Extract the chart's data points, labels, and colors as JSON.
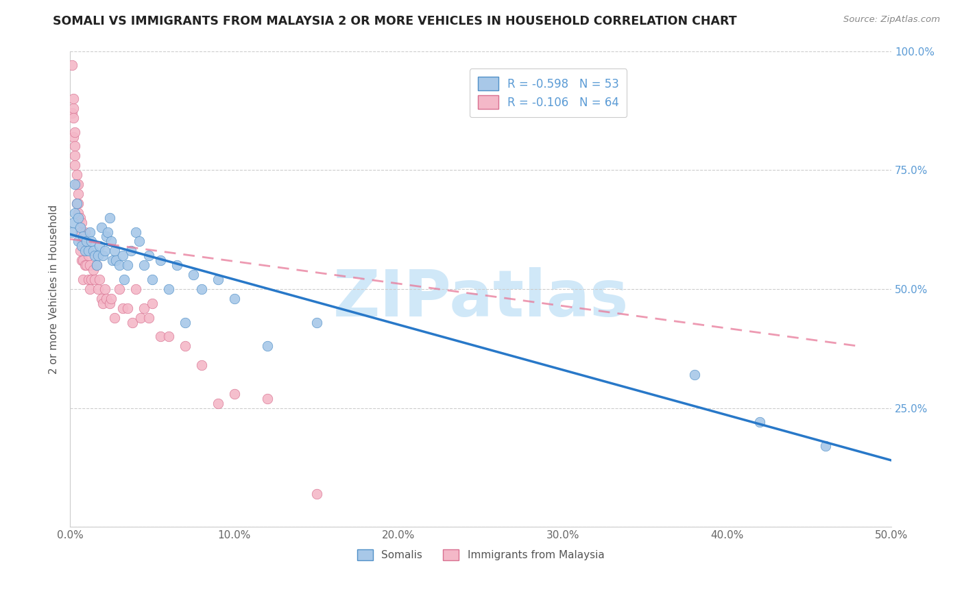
{
  "title": "SOMALI VS IMMIGRANTS FROM MALAYSIA 2 OR MORE VEHICLES IN HOUSEHOLD CORRELATION CHART",
  "source": "Source: ZipAtlas.com",
  "ylabel": "2 or more Vehicles in Household",
  "xmin": 0.0,
  "xmax": 0.5,
  "ymin": 0.0,
  "ymax": 1.0,
  "xticks": [
    0.0,
    0.1,
    0.2,
    0.3,
    0.4,
    0.5
  ],
  "xtick_labels": [
    "0.0%",
    "10.0%",
    "20.0%",
    "30.0%",
    "40.0%",
    "50.0%"
  ],
  "yticks": [
    0.0,
    0.25,
    0.5,
    0.75,
    1.0
  ],
  "ytick_labels_right": [
    "",
    "25.0%",
    "50.0%",
    "75.0%",
    "100.0%"
  ],
  "legend_label1": "Somalis",
  "legend_label2": "Immigrants from Malaysia",
  "R1": -0.598,
  "N1": 53,
  "R2": -0.106,
  "N2": 64,
  "color_blue": "#a8c8e8",
  "color_pink": "#f4b8c8",
  "color_blue_line": "#2878c8",
  "color_pink_line": "#e87898",
  "watermark": "ZIPatlas",
  "watermark_color": "#d0e8f8",
  "somali_x": [
    0.001,
    0.002,
    0.003,
    0.003,
    0.004,
    0.005,
    0.005,
    0.006,
    0.007,
    0.008,
    0.009,
    0.01,
    0.011,
    0.012,
    0.013,
    0.014,
    0.015,
    0.016,
    0.017,
    0.018,
    0.019,
    0.02,
    0.021,
    0.022,
    0.023,
    0.024,
    0.025,
    0.026,
    0.027,
    0.028,
    0.03,
    0.032,
    0.033,
    0.035,
    0.037,
    0.04,
    0.042,
    0.045,
    0.048,
    0.05,
    0.055,
    0.06,
    0.065,
    0.07,
    0.075,
    0.08,
    0.09,
    0.1,
    0.12,
    0.15,
    0.38,
    0.42,
    0.46
  ],
  "somali_y": [
    0.62,
    0.64,
    0.66,
    0.72,
    0.68,
    0.6,
    0.65,
    0.63,
    0.59,
    0.61,
    0.58,
    0.6,
    0.58,
    0.62,
    0.6,
    0.58,
    0.57,
    0.55,
    0.57,
    0.59,
    0.63,
    0.57,
    0.58,
    0.61,
    0.62,
    0.65,
    0.6,
    0.56,
    0.58,
    0.56,
    0.55,
    0.57,
    0.52,
    0.55,
    0.58,
    0.62,
    0.6,
    0.55,
    0.57,
    0.52,
    0.56,
    0.5,
    0.55,
    0.43,
    0.53,
    0.5,
    0.52,
    0.48,
    0.38,
    0.43,
    0.32,
    0.22,
    0.17
  ],
  "malaysia_x": [
    0.001,
    0.001,
    0.002,
    0.002,
    0.002,
    0.002,
    0.003,
    0.003,
    0.003,
    0.003,
    0.004,
    0.004,
    0.004,
    0.005,
    0.005,
    0.005,
    0.005,
    0.006,
    0.006,
    0.006,
    0.007,
    0.007,
    0.007,
    0.008,
    0.008,
    0.008,
    0.009,
    0.009,
    0.01,
    0.01,
    0.011,
    0.011,
    0.012,
    0.012,
    0.013,
    0.014,
    0.015,
    0.016,
    0.017,
    0.018,
    0.019,
    0.02,
    0.021,
    0.022,
    0.024,
    0.025,
    0.027,
    0.03,
    0.032,
    0.035,
    0.038,
    0.04,
    0.043,
    0.045,
    0.048,
    0.05,
    0.055,
    0.06,
    0.07,
    0.08,
    0.09,
    0.1,
    0.12,
    0.15
  ],
  "malaysia_y": [
    0.97,
    0.87,
    0.88,
    0.82,
    0.86,
    0.9,
    0.8,
    0.76,
    0.78,
    0.83,
    0.74,
    0.68,
    0.72,
    0.72,
    0.66,
    0.68,
    0.7,
    0.65,
    0.62,
    0.58,
    0.6,
    0.64,
    0.56,
    0.6,
    0.56,
    0.52,
    0.55,
    0.62,
    0.55,
    0.58,
    0.52,
    0.57,
    0.55,
    0.5,
    0.52,
    0.54,
    0.52,
    0.55,
    0.5,
    0.52,
    0.48,
    0.47,
    0.5,
    0.48,
    0.47,
    0.48,
    0.44,
    0.5,
    0.46,
    0.46,
    0.43,
    0.5,
    0.44,
    0.46,
    0.44,
    0.47,
    0.4,
    0.4,
    0.38,
    0.34,
    0.26,
    0.28,
    0.27,
    0.07
  ],
  "somali_trendline_x": [
    0.0,
    0.5
  ],
  "somali_trendline_y": [
    0.615,
    0.14
  ],
  "malaysia_trendline_x": [
    0.0,
    0.48
  ],
  "malaysia_trendline_y": [
    0.605,
    0.38
  ]
}
